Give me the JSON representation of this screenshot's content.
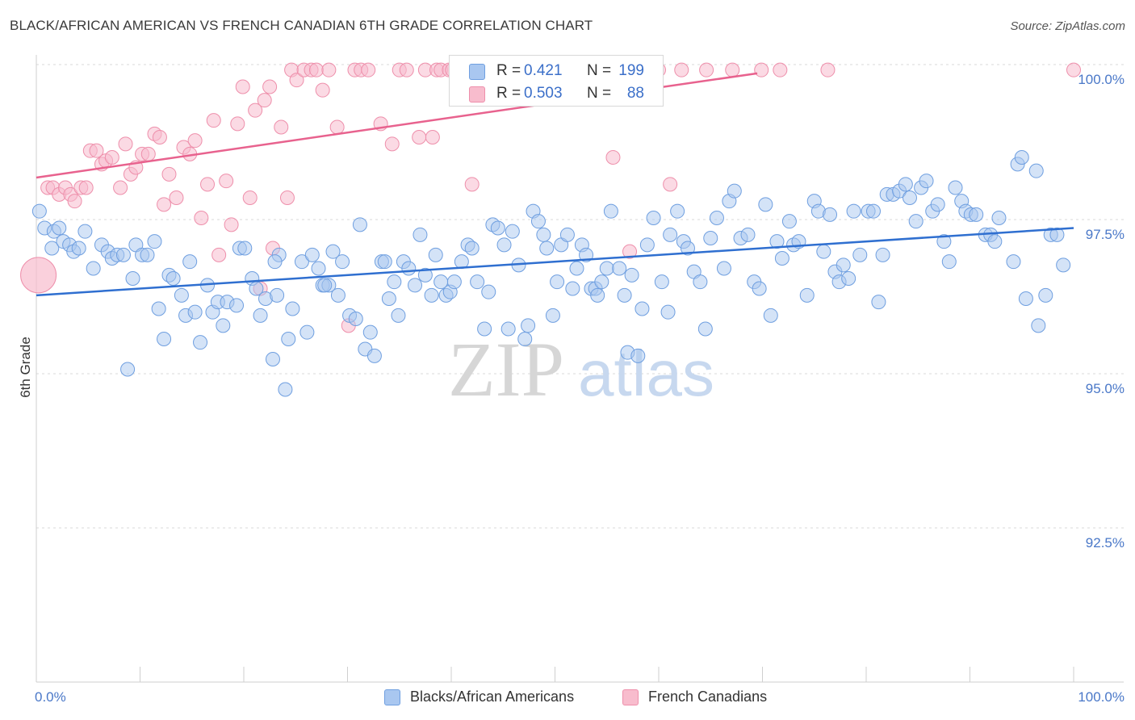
{
  "header": {
    "title": "BLACK/AFRICAN AMERICAN VS FRENCH CANADIAN 6TH GRADE CORRELATION CHART",
    "source": "Source: ZipAtlas.com"
  },
  "watermark": {
    "zip": "ZIP",
    "atlas": "atlas"
  },
  "legend_top": {
    "r_label": "R =",
    "n_label": "N =",
    "rows": [
      {
        "r": "0.421",
        "n": "199"
      },
      {
        "r": "0.503",
        "n": "88"
      }
    ]
  },
  "legend_bottom": {
    "items": [
      "Blacks/African Americans",
      "French Canadians"
    ]
  },
  "colors": {
    "blue_fill": "#a9c7f0",
    "blue_stroke": "#6f9fe0",
    "blue_line": "#2f6fd0",
    "pink_fill": "#f8bccd",
    "pink_stroke": "#ee8fab",
    "pink_line": "#e8628e",
    "tick_text": "#4a78c8",
    "grid": "#d9d9d9"
  },
  "chart_data": {
    "type": "scatter",
    "title": "BLACK/AFRICAN AMERICAN VS FRENCH CANADIAN 6TH GRADE CORRELATION CHART",
    "ylabel": "6th Grade",
    "xlabel": "",
    "x_ticks": [
      "0.0%",
      "100.0%"
    ],
    "y_ticks": [
      "100.0%",
      "97.5%",
      "95.0%",
      "92.5%"
    ],
    "y_tick_values": [
      100.0,
      97.5,
      95.0,
      92.5
    ],
    "xlim": [
      0,
      100
    ],
    "ylim": [
      90.95,
      100.25
    ],
    "grid": true,
    "legend": "bottom",
    "series": [
      {
        "name": "Blacks/African Americans",
        "r": 0.421,
        "n": 199,
        "trend": {
          "x": [
            0,
            100
          ],
          "y": [
            96.7,
            97.7
          ]
        },
        "points": [
          [
            0.3,
            97.95
          ],
          [
            0.8,
            97.7
          ],
          [
            1.5,
            97.4
          ],
          [
            1.7,
            97.65
          ],
          [
            2.2,
            97.7
          ],
          [
            2.6,
            97.5
          ],
          [
            3.2,
            97.45
          ],
          [
            3.6,
            97.35
          ],
          [
            4.1,
            97.4
          ],
          [
            4.7,
            97.65
          ],
          [
            5.5,
            97.1
          ],
          [
            6.3,
            97.45
          ],
          [
            6.9,
            97.35
          ],
          [
            7.3,
            97.25
          ],
          [
            7.8,
            97.3
          ],
          [
            8.4,
            97.3
          ],
          [
            8.8,
            95.6
          ],
          [
            9.3,
            96.95
          ],
          [
            9.6,
            97.45
          ],
          [
            10.2,
            97.3
          ],
          [
            10.7,
            97.3
          ],
          [
            11.4,
            97.5
          ],
          [
            11.8,
            96.5
          ],
          [
            12.3,
            96.05
          ],
          [
            12.8,
            97.0
          ],
          [
            13.2,
            96.95
          ],
          [
            14.0,
            96.7
          ],
          [
            14.4,
            96.4
          ],
          [
            14.8,
            97.2
          ],
          [
            15.3,
            96.45
          ],
          [
            15.8,
            96.0
          ],
          [
            16.5,
            96.85
          ],
          [
            17.0,
            96.45
          ],
          [
            17.5,
            96.6
          ],
          [
            18.0,
            96.25
          ],
          [
            18.4,
            96.6
          ],
          [
            19.3,
            96.55
          ],
          [
            19.6,
            97.4
          ],
          [
            20.1,
            97.4
          ],
          [
            20.8,
            96.95
          ],
          [
            21.2,
            96.8
          ],
          [
            21.6,
            96.4
          ],
          [
            22.1,
            96.65
          ],
          [
            22.8,
            95.75
          ],
          [
            23.2,
            96.7
          ],
          [
            23.4,
            97.3
          ],
          [
            24.0,
            95.3
          ],
          [
            24.3,
            96.05
          ],
          [
            24.7,
            96.5
          ],
          [
            25.6,
            97.2
          ],
          [
            26.1,
            96.15
          ],
          [
            26.6,
            97.3
          ],
          [
            27.2,
            97.1
          ],
          [
            27.6,
            96.85
          ],
          [
            28.2,
            96.85
          ],
          [
            28.6,
            97.35
          ],
          [
            29.1,
            96.7
          ],
          [
            29.5,
            97.2
          ],
          [
            30.2,
            96.4
          ],
          [
            30.8,
            96.35
          ],
          [
            31.2,
            97.75
          ],
          [
            31.7,
            95.9
          ],
          [
            32.2,
            96.15
          ],
          [
            32.6,
            95.8
          ],
          [
            33.3,
            97.2
          ],
          [
            33.6,
            97.2
          ],
          [
            34.0,
            96.65
          ],
          [
            34.5,
            96.9
          ],
          [
            34.9,
            96.4
          ],
          [
            35.4,
            97.2
          ],
          [
            35.9,
            97.1
          ],
          [
            36.5,
            96.85
          ],
          [
            37.0,
            97.6
          ],
          [
            37.5,
            97.0
          ],
          [
            38.1,
            96.7
          ],
          [
            38.5,
            97.3
          ],
          [
            39.0,
            96.9
          ],
          [
            39.5,
            96.7
          ],
          [
            39.9,
            96.75
          ],
          [
            40.3,
            96.9
          ],
          [
            41.0,
            97.2
          ],
          [
            41.6,
            97.45
          ],
          [
            42.0,
            97.4
          ],
          [
            42.5,
            96.9
          ],
          [
            43.2,
            96.2
          ],
          [
            43.6,
            96.75
          ],
          [
            44.0,
            97.75
          ],
          [
            44.5,
            97.7
          ],
          [
            45.1,
            97.45
          ],
          [
            45.5,
            96.2
          ],
          [
            45.9,
            97.65
          ],
          [
            46.5,
            97.15
          ],
          [
            47.1,
            96.05
          ],
          [
            47.4,
            96.25
          ],
          [
            47.9,
            97.95
          ],
          [
            48.4,
            97.8
          ],
          [
            48.9,
            97.6
          ],
          [
            49.2,
            97.4
          ],
          [
            49.8,
            96.4
          ],
          [
            50.2,
            96.9
          ],
          [
            50.6,
            97.45
          ],
          [
            51.2,
            97.6
          ],
          [
            51.7,
            96.8
          ],
          [
            52.1,
            97.1
          ],
          [
            52.6,
            97.45
          ],
          [
            53.0,
            97.3
          ],
          [
            53.5,
            96.8
          ],
          [
            53.9,
            96.8
          ],
          [
            54.1,
            96.7
          ],
          [
            54.5,
            96.9
          ],
          [
            55.0,
            97.1
          ],
          [
            55.4,
            97.95
          ],
          [
            56.2,
            97.1
          ],
          [
            56.7,
            96.7
          ],
          [
            57.0,
            95.85
          ],
          [
            57.4,
            97.0
          ],
          [
            58.0,
            95.8
          ],
          [
            58.4,
            96.5
          ],
          [
            58.9,
            97.45
          ],
          [
            59.5,
            97.85
          ],
          [
            60.3,
            96.9
          ],
          [
            61.1,
            97.6
          ],
          [
            61.8,
            97.95
          ],
          [
            62.4,
            97.5
          ],
          [
            62.8,
            97.4
          ],
          [
            63.4,
            97.05
          ],
          [
            64.0,
            96.9
          ],
          [
            64.5,
            96.2
          ],
          [
            65.0,
            97.55
          ],
          [
            65.6,
            97.85
          ],
          [
            66.3,
            97.1
          ],
          [
            66.8,
            98.1
          ],
          [
            67.3,
            98.25
          ],
          [
            67.9,
            97.55
          ],
          [
            68.6,
            97.6
          ],
          [
            69.2,
            96.9
          ],
          [
            69.7,
            96.8
          ],
          [
            70.3,
            98.05
          ],
          [
            70.8,
            96.4
          ],
          [
            71.4,
            97.5
          ],
          [
            71.9,
            97.25
          ],
          [
            72.6,
            97.8
          ],
          [
            73.0,
            97.45
          ],
          [
            73.5,
            97.5
          ],
          [
            74.3,
            96.7
          ],
          [
            75.0,
            98.1
          ],
          [
            75.4,
            97.95
          ],
          [
            75.9,
            97.35
          ],
          [
            76.5,
            97.9
          ],
          [
            77.0,
            97.05
          ],
          [
            77.4,
            96.9
          ],
          [
            77.8,
            97.15
          ],
          [
            78.3,
            96.95
          ],
          [
            78.8,
            97.95
          ],
          [
            79.4,
            97.3
          ],
          [
            80.2,
            97.95
          ],
          [
            80.7,
            97.95
          ],
          [
            81.2,
            96.6
          ],
          [
            81.6,
            97.3
          ],
          [
            82.0,
            98.2
          ],
          [
            82.6,
            98.2
          ],
          [
            83.2,
            98.25
          ],
          [
            83.8,
            98.35
          ],
          [
            84.2,
            98.15
          ],
          [
            84.8,
            97.8
          ],
          [
            85.3,
            98.3
          ],
          [
            85.8,
            98.4
          ],
          [
            86.4,
            97.95
          ],
          [
            86.9,
            98.05
          ],
          [
            87.5,
            97.5
          ],
          [
            88.0,
            97.2
          ],
          [
            88.6,
            98.3
          ],
          [
            89.2,
            98.1
          ],
          [
            89.6,
            97.95
          ],
          [
            90.1,
            97.9
          ],
          [
            90.6,
            97.9
          ],
          [
            91.5,
            97.6
          ],
          [
            92.0,
            97.6
          ],
          [
            92.4,
            97.5
          ],
          [
            92.8,
            97.85
          ],
          [
            94.2,
            97.2
          ],
          [
            94.6,
            98.65
          ],
          [
            95.0,
            98.75
          ],
          [
            95.4,
            96.65
          ],
          [
            96.4,
            98.55
          ],
          [
            96.6,
            96.25
          ],
          [
            97.3,
            96.7
          ],
          [
            97.8,
            97.6
          ],
          [
            98.4,
            97.6
          ],
          [
            99.0,
            97.15
          ],
          [
            23.0,
            97.2
          ],
          [
            60.9,
            96.45
          ],
          [
            27.8,
            96.85
          ]
        ],
        "big_point": null
      },
      {
        "name": "French Canadians",
        "r": 0.503,
        "n": 88,
        "trend": {
          "x": [
            0,
            69.5
          ],
          "y": [
            98.45,
            100.0
          ]
        },
        "points": [
          [
            1.1,
            98.3
          ],
          [
            1.6,
            98.3
          ],
          [
            2.2,
            98.2
          ],
          [
            2.8,
            98.3
          ],
          [
            3.3,
            98.2
          ],
          [
            3.7,
            98.1
          ],
          [
            4.3,
            98.3
          ],
          [
            4.8,
            98.3
          ],
          [
            5.2,
            98.85
          ],
          [
            5.8,
            98.85
          ],
          [
            6.3,
            98.65
          ],
          [
            6.7,
            98.7
          ],
          [
            7.3,
            98.75
          ],
          [
            8.1,
            98.3
          ],
          [
            8.6,
            98.95
          ],
          [
            9.1,
            98.5
          ],
          [
            9.6,
            98.6
          ],
          [
            10.2,
            98.8
          ],
          [
            10.8,
            98.8
          ],
          [
            11.4,
            99.1
          ],
          [
            11.9,
            99.05
          ],
          [
            12.3,
            98.05
          ],
          [
            12.8,
            98.5
          ],
          [
            13.5,
            98.15
          ],
          [
            14.2,
            98.9
          ],
          [
            14.8,
            98.8
          ],
          [
            15.3,
            99.0
          ],
          [
            15.9,
            97.85
          ],
          [
            16.5,
            98.35
          ],
          [
            17.1,
            99.3
          ],
          [
            17.6,
            97.3
          ],
          [
            18.3,
            98.4
          ],
          [
            18.8,
            97.75
          ],
          [
            19.4,
            99.25
          ],
          [
            19.9,
            99.8
          ],
          [
            20.6,
            98.15
          ],
          [
            21.1,
            99.45
          ],
          [
            21.6,
            96.8
          ],
          [
            22.0,
            99.6
          ],
          [
            22.5,
            99.8
          ],
          [
            22.8,
            97.4
          ],
          [
            23.6,
            99.2
          ],
          [
            24.2,
            98.15
          ],
          [
            24.6,
            100.05
          ],
          [
            25.1,
            99.9
          ],
          [
            25.8,
            100.05
          ],
          [
            26.5,
            100.05
          ],
          [
            27.0,
            100.05
          ],
          [
            27.6,
            99.75
          ],
          [
            28.2,
            100.05
          ],
          [
            29.0,
            99.2
          ],
          [
            30.1,
            96.25
          ],
          [
            30.7,
            100.05
          ],
          [
            31.3,
            100.05
          ],
          [
            32.0,
            100.05
          ],
          [
            33.2,
            99.25
          ],
          [
            34.3,
            98.95
          ],
          [
            35.0,
            100.05
          ],
          [
            35.7,
            100.05
          ],
          [
            36.9,
            99.05
          ],
          [
            37.5,
            100.05
          ],
          [
            38.2,
            99.05
          ],
          [
            38.6,
            100.05
          ],
          [
            39.0,
            100.05
          ],
          [
            39.8,
            100.05
          ],
          [
            40.1,
            100.05
          ],
          [
            41.0,
            100.05
          ],
          [
            41.6,
            100.05
          ],
          [
            42.0,
            98.35
          ],
          [
            42.7,
            100.05
          ],
          [
            47.3,
            100.05
          ],
          [
            49.2,
            100.05
          ],
          [
            50.9,
            100.05
          ],
          [
            51.4,
            100.05
          ],
          [
            52.5,
            100.05
          ],
          [
            55.6,
            98.75
          ],
          [
            56.4,
            100.05
          ],
          [
            57.2,
            97.35
          ],
          [
            58.1,
            100.05
          ],
          [
            60.0,
            100.05
          ],
          [
            61.1,
            98.35
          ],
          [
            62.2,
            100.05
          ],
          [
            64.6,
            100.05
          ],
          [
            67.1,
            100.05
          ],
          [
            69.9,
            100.05
          ],
          [
            71.7,
            100.05
          ],
          [
            76.3,
            100.05
          ],
          [
            100.0,
            100.05
          ]
        ],
        "big_point": [
          0.2,
          97.0
        ]
      }
    ]
  }
}
